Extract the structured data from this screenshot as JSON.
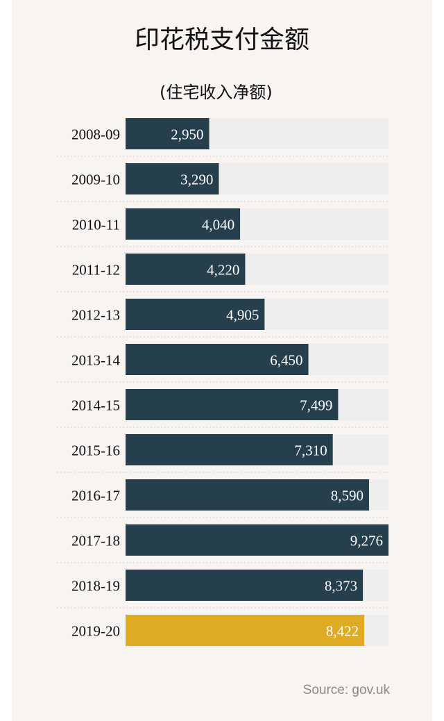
{
  "chart_data": {
    "type": "bar",
    "orientation": "horizontal",
    "title": "印花税支付金额",
    "subtitle": "(住宅收入净额)",
    "categories": [
      "2008-09",
      "2009-10",
      "2010-11",
      "2011-12",
      "2012-13",
      "2013-14",
      "2014-15",
      "2015-16",
      "2016-17",
      "2017-18",
      "2018-19",
      "2019-20"
    ],
    "values": [
      2950,
      3290,
      4040,
      4220,
      4905,
      6450,
      7499,
      7310,
      8590,
      9276,
      8373,
      8422
    ],
    "value_labels": [
      "2,950",
      "3,290",
      "4,040",
      "4,220",
      "4,905",
      "6,450",
      "7,499",
      "7,310",
      "8,590",
      "9,276",
      "8,373",
      "8,422"
    ],
    "xlim": [
      0,
      9276
    ],
    "grid": false,
    "colors": {
      "bar": "#263f4d",
      "highlight": "#dfab22",
      "track": "#eeeeee",
      "label_text": "#ffffff",
      "category_text": "#111111",
      "separator": "#d4d0cd"
    },
    "highlight_index": 11
  },
  "source": "Source: gov.uk"
}
